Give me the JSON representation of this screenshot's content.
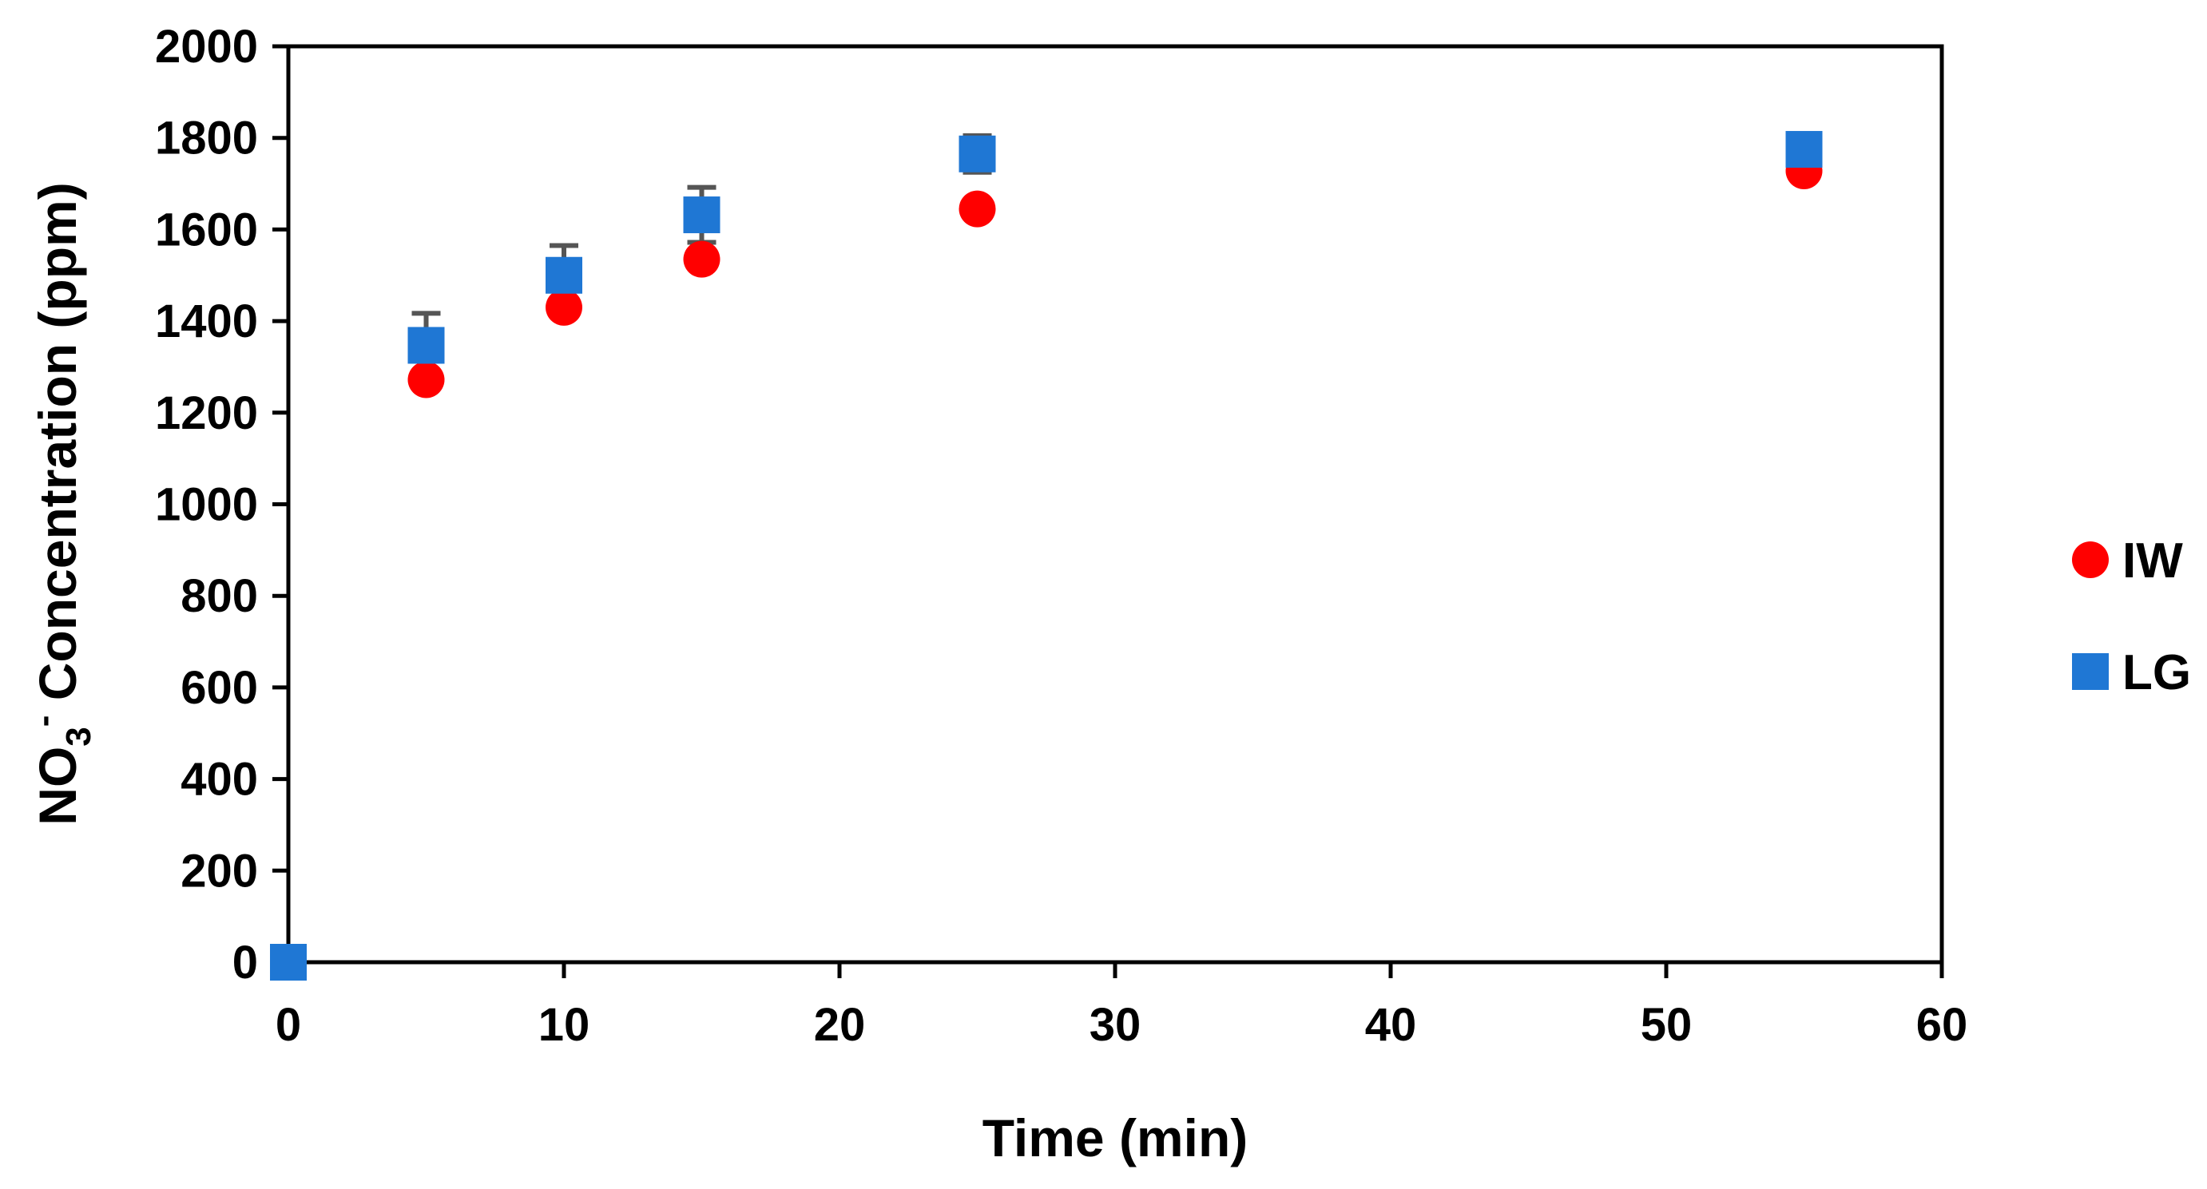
{
  "chart_data": {
    "type": "scatter",
    "title": "",
    "xlabel": "Time (min)",
    "ylabel": {
      "main": "NO",
      "sub": "3",
      "sup": "-",
      "rest": " Concentration (ppm)"
    },
    "xlim": [
      0,
      60
    ],
    "ylim": [
      0,
      2000
    ],
    "xticks": [
      "0",
      "10",
      "20",
      "30",
      "40",
      "50",
      "60"
    ],
    "yticks": [
      "0",
      "200",
      "400",
      "600",
      "800",
      "1000",
      "1200",
      "1400",
      "1600",
      "1800",
      "2000"
    ],
    "grid": false,
    "legend_position": "right",
    "series": [
      {
        "name": "IW",
        "marker": "circle",
        "color": "#ff0000",
        "x": [
          0,
          5,
          10,
          15,
          25,
          55
        ],
        "y": [
          0,
          1272,
          1430,
          1535,
          1645,
          1728
        ],
        "error": [
          0,
          0,
          0,
          0,
          0,
          0
        ]
      },
      {
        "name": "LG",
        "marker": "square",
        "color": "#1f77d4",
        "x": [
          0,
          5,
          10,
          15,
          25,
          55
        ],
        "y": [
          0,
          1347,
          1500,
          1632,
          1765,
          1775
        ],
        "error": [
          0,
          70,
          65,
          60,
          40,
          0
        ]
      }
    ],
    "error_bar_color": "#555555"
  }
}
